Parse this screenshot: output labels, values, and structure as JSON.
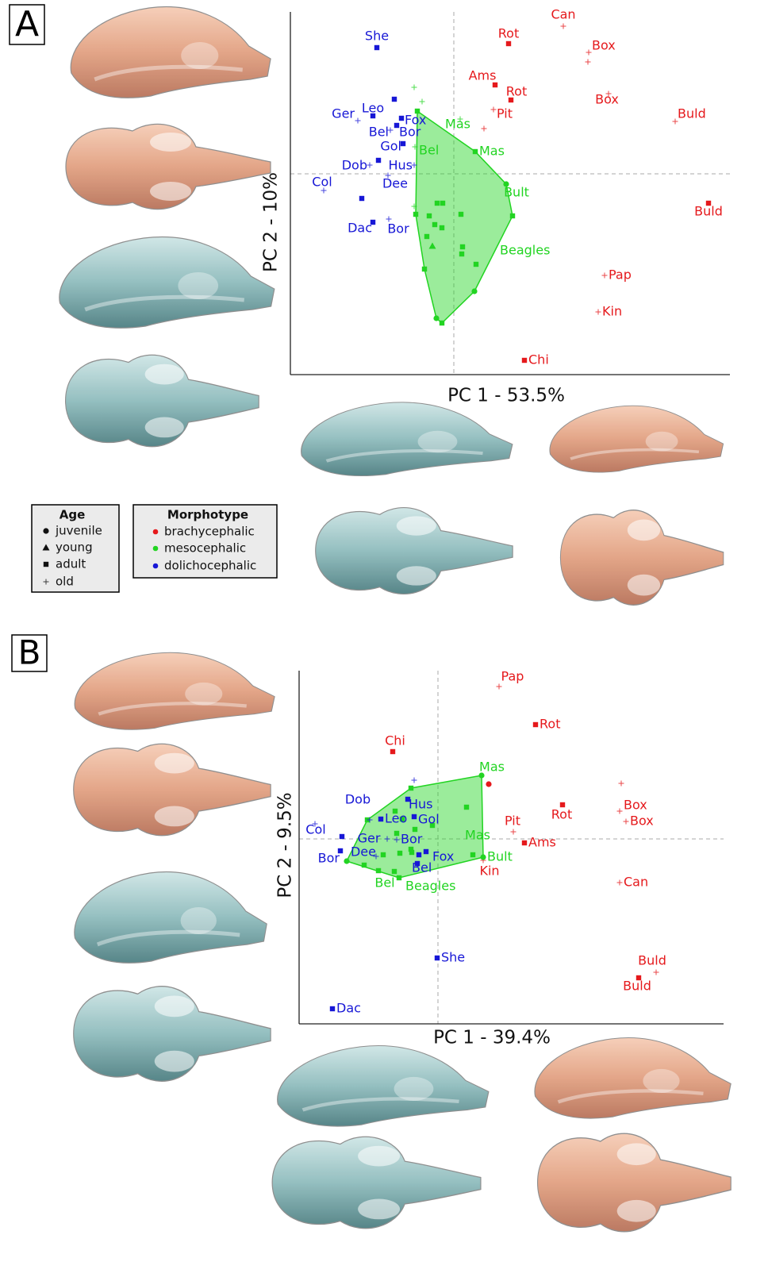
{
  "panel_labels": [
    "A",
    "B"
  ],
  "age_legend": {
    "title": "Age",
    "items": [
      {
        "label": "juvenile",
        "marker": "circle"
      },
      {
        "label": "young",
        "marker": "triangle"
      },
      {
        "label": "adult",
        "marker": "square"
      },
      {
        "label": "old",
        "marker": "plus"
      }
    ]
  },
  "chart_data": [
    {
      "type": "scatter",
      "xlabel": "PC 1 - 53.5%",
      "ylabel": "PC 2 - 10%",
      "xlim": [
        -2.06,
        3.48
      ],
      "ylim": [
        -2.53,
        2.04
      ],
      "zero_lines": true,
      "legend_title": "Morphotype",
      "series": [
        {
          "name": "brachycephalic",
          "color": "#e5191c",
          "x": [
            1.38,
            0.69,
            1.7,
            1.69,
            0.52,
            0.72,
            1.95,
            0.5,
            0.38,
            2.79,
            3.21,
            1.9,
            1.82,
            0.89
          ],
          "values": [
            1.86,
            1.64,
            1.53,
            1.41,
            1.12,
            0.93,
            1.01,
            0.81,
            0.57,
            0.66,
            -0.37,
            -1.28,
            -1.74,
            -2.35
          ],
          "markers": [
            "plus",
            "square",
            "plus",
            "plus",
            "square",
            "square",
            "plus",
            "plus",
            "plus",
            "plus",
            "square",
            "plus",
            "plus",
            "square"
          ],
          "point_labels": [
            "Can",
            "Rot",
            "Box",
            null,
            "Ams",
            "Rot",
            "Box",
            "Pit",
            null,
            "Buld",
            "Buld",
            "Pap",
            "Kin",
            "Chi"
          ]
        },
        {
          "name": "mesocephalic",
          "color": "#22d422",
          "hull": true,
          "x": [
            -0.5,
            -0.4,
            -0.46,
            0.08,
            0.27,
            -0.49,
            0.66,
            0.74,
            -0.5,
            -0.48,
            -0.31,
            -0.21,
            -0.14,
            0.09,
            -0.24,
            -0.34,
            -0.27,
            -0.15,
            0.11,
            0.1,
            -0.37,
            0.28,
            0.26,
            -0.22,
            -0.15
          ],
          "values": [
            1.09,
            0.91,
            0.79,
            0.69,
            0.28,
            0.34,
            -0.13,
            -0.53,
            -0.41,
            -0.51,
            -0.53,
            -0.37,
            -0.37,
            -0.51,
            -0.64,
            -0.79,
            -0.91,
            -0.68,
            -0.92,
            -1.01,
            -1.2,
            -1.14,
            -1.48,
            -1.82,
            -1.88
          ],
          "markers": [
            "plus",
            "plus",
            "square",
            "plus",
            "square",
            "plus",
            "circle",
            "square",
            "plus",
            "square",
            "square",
            "square",
            "square",
            "square",
            "square",
            "square",
            "triangle",
            "square",
            "square",
            "square",
            "square",
            "square",
            "circle",
            "circle",
            "square"
          ],
          "point_labels": [
            null,
            null,
            null,
            "Mas",
            "Mas",
            "Bel",
            "Bult",
            null,
            null,
            null,
            null,
            null,
            null,
            null,
            null,
            null,
            null,
            null,
            null,
            null,
            null,
            "Beagles",
            null,
            null,
            null
          ]
        },
        {
          "name": "dolichocephalic",
          "color": "#1717d6",
          "x": [
            -0.97,
            -0.75,
            -1.02,
            -1.21,
            -0.66,
            -0.8,
            -0.72,
            -0.64,
            -1.06,
            -0.95,
            -0.5,
            -0.83,
            -1.64,
            -1.16,
            -1.02,
            -0.82
          ],
          "values": [
            1.59,
            0.94,
            0.73,
            0.67,
            0.7,
            0.55,
            0.61,
            0.38,
            0.11,
            0.17,
            0.11,
            -0.02,
            -0.21,
            -0.31,
            -0.61,
            -0.57
          ],
          "markers": [
            "square",
            "square",
            "square",
            "plus",
            "square",
            "plus",
            "square",
            "square",
            "plus",
            "square",
            "plus",
            "plus",
            "plus",
            "square",
            "square",
            "plus"
          ],
          "point_labels": [
            "She",
            null,
            "Leo",
            "Ger",
            "Fox",
            "Bel",
            "Bor",
            "Gol",
            "Dob",
            null,
            "Hus",
            "Dee",
            "Col",
            null,
            "Dac",
            "Bor"
          ]
        }
      ]
    },
    {
      "type": "scatter",
      "xlabel": "PC 1 - 39.4%",
      "ylabel": "PC 2 - 9.5%",
      "xlim": [
        -1.75,
        3.6
      ],
      "ylim": [
        -2.33,
        2.12
      ],
      "zero_lines": true,
      "series": [
        {
          "name": "brachycephalic",
          "color": "#e5191c",
          "x": [
            0.77,
            1.23,
            -0.57,
            0.64,
            2.31,
            2.29,
            2.37,
            1.57,
            0.95,
            1.09,
            0.57,
            2.29,
            2.75,
            2.53
          ],
          "values": [
            1.92,
            1.44,
            1.1,
            0.69,
            0.7,
            0.35,
            0.22,
            0.43,
            0.09,
            -0.05,
            -0.27,
            -0.55,
            -1.68,
            -1.75
          ],
          "markers": [
            "plus",
            "square",
            "square",
            "circle",
            "plus",
            "plus",
            "plus",
            "square",
            "plus",
            "square",
            "plus",
            "plus",
            "plus",
            "square"
          ],
          "point_labels": [
            "Pap",
            "Rot",
            "Chi",
            null,
            null,
            "Box",
            "Box",
            "Rot",
            "Pit",
            "Ams",
            "Kin",
            "Can",
            "Buld",
            "Buld"
          ]
        },
        {
          "name": "mesocephalic",
          "color": "#22d422",
          "hull": true,
          "x": [
            0.55,
            0.44,
            0.57,
            -0.34,
            0.36,
            -1.15,
            -0.89,
            -0.93,
            -0.75,
            -0.55,
            -0.49,
            -0.54,
            -0.45,
            -0.29,
            -0.52,
            -0.34,
            -0.33,
            -0.69,
            -0.07,
            -0.48
          ],
          "values": [
            0.8,
            -0.2,
            -0.23,
            0.64,
            0.4,
            -0.28,
            0.24,
            -0.33,
            -0.4,
            -0.41,
            -0.49,
            0.35,
            0.25,
            0.12,
            0.07,
            -0.13,
            -0.17,
            -0.2,
            0.17,
            -0.18
          ],
          "markers": [
            "circle",
            "square",
            "circle",
            "square",
            "square",
            "circle",
            "square",
            "square",
            "square",
            "square",
            "square",
            "square",
            "square",
            "square",
            "square",
            "square",
            "square",
            "square",
            "square",
            "square"
          ],
          "point_labels": [
            "Mas",
            "Mas",
            "Bult",
            null,
            null,
            null,
            null,
            null,
            null,
            "Bel",
            "Beagles",
            null,
            null,
            null,
            null,
            null,
            null,
            null,
            null,
            null
          ]
        },
        {
          "name": "dolichocephalic",
          "color": "#1717d6",
          "x": [
            -1.55,
            -0.86,
            -1.21,
            -1.23,
            -0.78,
            -0.64,
            -0.72,
            -0.38,
            -0.3,
            -0.52,
            -0.15,
            -0.24,
            -0.26,
            -0.01,
            -1.33,
            -0.3
          ],
          "values": [
            0.19,
            0.24,
            0.03,
            -0.15,
            -0.22,
            0.0,
            0.25,
            0.5,
            0.28,
            -0.01,
            -0.16,
            -0.2,
            -0.31,
            -1.5,
            -2.14,
            0.74
          ],
          "markers": [
            "plus",
            "plus",
            "square",
            "square",
            "plus",
            "plus",
            "square",
            "square",
            "square",
            "plus",
            "square",
            "square",
            "square",
            "square",
            "square",
            "plus"
          ],
          "point_labels": [
            "Col",
            "Dob",
            null,
            "Bor",
            "Dee",
            "Ger",
            "Leo",
            "Hus",
            "Gol",
            "Bor",
            "Fox",
            null,
            "Bel",
            "She",
            "Dac",
            null
          ]
        }
      ]
    }
  ]
}
